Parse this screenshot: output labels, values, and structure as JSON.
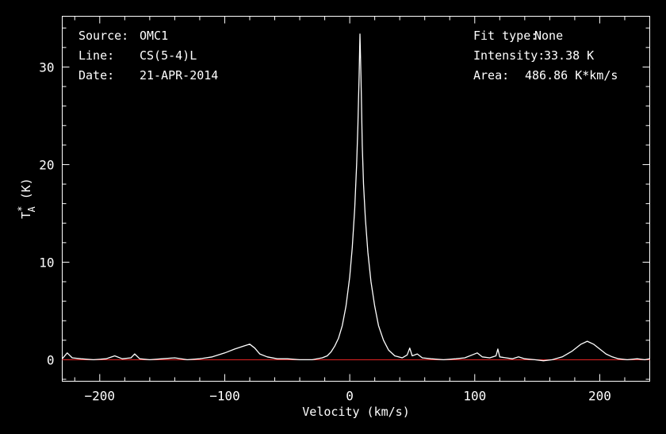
{
  "info_left": {
    "source_label": "Source:",
    "source_value": "OMC1",
    "line_label": "Line:",
    "line_value": "CS(5-4)L",
    "date_label": "Date:",
    "date_value": "21-APR-2014"
  },
  "info_right": {
    "fit_label": "Fit type:",
    "fit_value": "None",
    "intensity_label": "Intensity:",
    "intensity_value": "33.38 K",
    "area_label": "Area:",
    "area_value": "486.86 K*km/s"
  },
  "chart_data": {
    "type": "line",
    "xlabel": "Velocity (km/s)",
    "ylabel_main": "T",
    "ylabel_sup": "*",
    "ylabel_sub": "A",
    "ylabel_unit": " (K)",
    "xlim": [
      -230,
      240
    ],
    "ylim": [
      -2.2,
      35.2
    ],
    "xticks": [
      -200,
      -100,
      0,
      100,
      200
    ],
    "xtick_labels": [
      "−200",
      "−100",
      "0",
      "100",
      "200"
    ],
    "yticks": [
      0,
      10,
      20,
      30
    ],
    "ytick_labels": [
      "0",
      "10",
      "20",
      "30"
    ],
    "baseline": 0,
    "series": [
      {
        "color": "#ffffff",
        "points": [
          [
            -230,
            0.1
          ],
          [
            -226,
            0.7
          ],
          [
            -222,
            0.2
          ],
          [
            -215,
            0.1
          ],
          [
            -205,
            0.0
          ],
          [
            -195,
            0.1
          ],
          [
            -188,
            0.4
          ],
          [
            -182,
            0.1
          ],
          [
            -175,
            0.2
          ],
          [
            -172,
            0.6
          ],
          [
            -168,
            0.1
          ],
          [
            -160,
            0.0
          ],
          [
            -150,
            0.1
          ],
          [
            -140,
            0.2
          ],
          [
            -130,
            0.0
          ],
          [
            -120,
            0.1
          ],
          [
            -110,
            0.3
          ],
          [
            -100,
            0.7
          ],
          [
            -92,
            1.1
          ],
          [
            -85,
            1.4
          ],
          [
            -80,
            1.6
          ],
          [
            -76,
            1.2
          ],
          [
            -72,
            0.6
          ],
          [
            -66,
            0.3
          ],
          [
            -58,
            0.1
          ],
          [
            -50,
            0.1
          ],
          [
            -40,
            0.0
          ],
          [
            -30,
            0.0
          ],
          [
            -22,
            0.2
          ],
          [
            -18,
            0.4
          ],
          [
            -15,
            0.8
          ],
          [
            -12,
            1.4
          ],
          [
            -9,
            2.2
          ],
          [
            -6,
            3.5
          ],
          [
            -3,
            5.5
          ],
          [
            0,
            8.5
          ],
          [
            2,
            11.5
          ],
          [
            4,
            15.5
          ],
          [
            5.5,
            20.0
          ],
          [
            6.5,
            24.0
          ],
          [
            7.5,
            29.0
          ],
          [
            8.2,
            33.38
          ],
          [
            9,
            29.0
          ],
          [
            10,
            22.0
          ],
          [
            11,
            18.0
          ],
          [
            12.5,
            14.5
          ],
          [
            14.5,
            11.0
          ],
          [
            17,
            8.0
          ],
          [
            20,
            5.5
          ],
          [
            23,
            3.5
          ],
          [
            27,
            2.0
          ],
          [
            31,
            1.0
          ],
          [
            36,
            0.4
          ],
          [
            42,
            0.2
          ],
          [
            46,
            0.5
          ],
          [
            48,
            1.2
          ],
          [
            50,
            0.4
          ],
          [
            54,
            0.6
          ],
          [
            58,
            0.2
          ],
          [
            65,
            0.1
          ],
          [
            75,
            0.0
          ],
          [
            85,
            0.1
          ],
          [
            92,
            0.2
          ],
          [
            98,
            0.5
          ],
          [
            102,
            0.7
          ],
          [
            106,
            0.3
          ],
          [
            112,
            0.2
          ],
          [
            117,
            0.4
          ],
          [
            118.5,
            1.1
          ],
          [
            120,
            0.3
          ],
          [
            125,
            0.2
          ],
          [
            130,
            0.1
          ],
          [
            135,
            0.3
          ],
          [
            140,
            0.1
          ],
          [
            148,
            0.0
          ],
          [
            155,
            -0.1
          ],
          [
            162,
            0.0
          ],
          [
            170,
            0.3
          ],
          [
            178,
            0.9
          ],
          [
            185,
            1.6
          ],
          [
            190,
            1.9
          ],
          [
            195,
            1.6
          ],
          [
            200,
            1.1
          ],
          [
            205,
            0.6
          ],
          [
            210,
            0.3
          ],
          [
            215,
            0.1
          ],
          [
            222,
            0.0
          ],
          [
            230,
            0.1
          ],
          [
            236,
            0.0
          ],
          [
            240,
            0.1
          ]
        ]
      }
    ],
    "baseline_color": "#d42020"
  }
}
